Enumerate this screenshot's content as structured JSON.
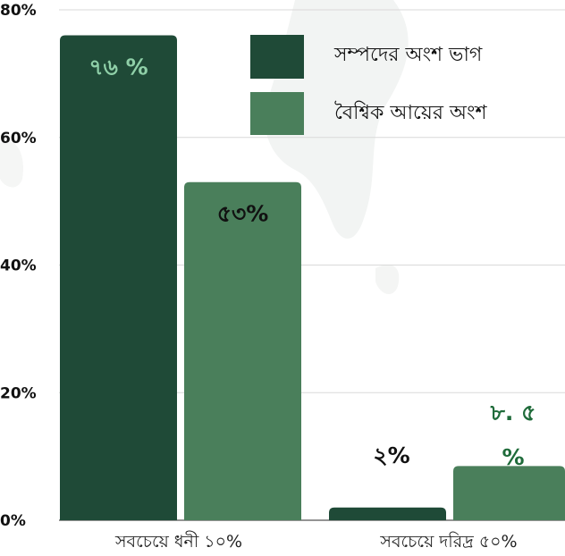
{
  "chart_data": {
    "type": "bar",
    "categories": [
      "সবচেয়ে ধনী ১০%",
      "সবচেয়ে দরিদ্র ৫০%"
    ],
    "series": [
      {
        "name": "সম্পদের অংশ ভাগ",
        "values": [
          76,
          2
        ],
        "color": "#1f4a37",
        "labels": [
          "৭৬ %",
          "২%"
        ],
        "label_color": "#8fd0a8"
      },
      {
        "name": "বৈশ্বিক আয়ের অংশ",
        "values": [
          53,
          8.5
        ],
        "color": "#4a7f5b",
        "labels": [
          "৫৩%",
          "৮. ৫ %"
        ],
        "label_color": "#111111"
      }
    ],
    "title": "",
    "xlabel": "",
    "ylabel": "",
    "yticks": [
      "0%",
      "20%",
      "40%",
      "60%",
      "80%"
    ],
    "ylim": [
      0,
      80
    ],
    "grid": true,
    "legend_position": "top-right"
  }
}
